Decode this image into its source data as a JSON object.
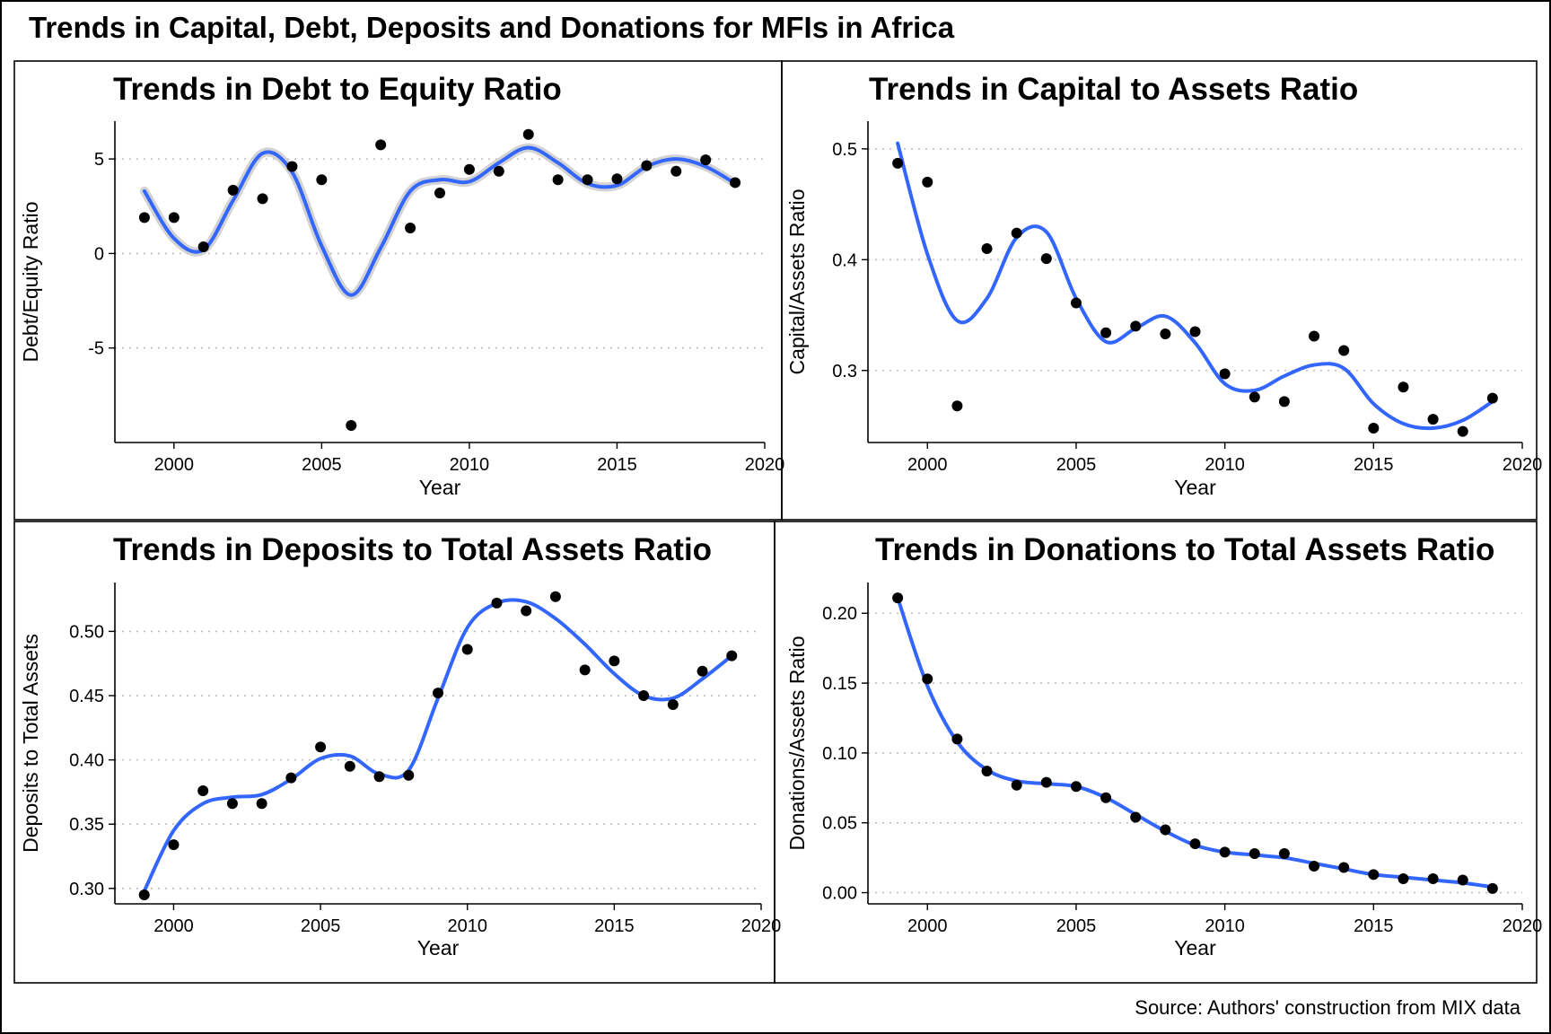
{
  "figure": {
    "title": "Trends in Capital, Debt, Deposits and Donations for MFIs in Africa",
    "source": "Source: Authors' construction from MIX data"
  },
  "chart_data": [
    {
      "type": "scatter",
      "title": "Trends in Debt to Equity Ratio",
      "xlabel": "Year",
      "ylabel": "Debt/Equity Ratio",
      "xlim": [
        1998,
        2020
      ],
      "ylim": [
        -10,
        7
      ],
      "xticks": [
        2000,
        2005,
        2010,
        2015,
        2020
      ],
      "xtick_labels": [
        "2000",
        "2005",
        "2010",
        "2015",
        "2020"
      ],
      "yticks": [
        -5,
        0,
        5
      ],
      "ytick_labels": [
        "-5",
        "0",
        "5"
      ],
      "grid": "horizontal dotted",
      "x": [
        1999,
        2000,
        2001,
        2002,
        2003,
        2004,
        2005,
        2006,
        2007,
        2008,
        2009,
        2010,
        2011,
        2012,
        2013,
        2014,
        2015,
        2016,
        2017,
        2018,
        2019
      ],
      "y": [
        1.9,
        1.9,
        0.35,
        3.35,
        2.9,
        4.6,
        3.9,
        -9.1,
        5.75,
        1.35,
        3.2,
        4.45,
        4.35,
        6.3,
        3.9,
        3.9,
        3.95,
        4.65,
        4.35,
        4.95,
        3.75
      ],
      "smooth": {
        "x": [
          1999,
          2000,
          2001,
          2002,
          2003,
          2004,
          2005,
          2006,
          2007,
          2008,
          2009,
          2010,
          2011,
          2012,
          2013,
          2014,
          2015,
          2016,
          2017,
          2018,
          2019
        ],
        "y": [
          3.3,
          0.8,
          0.2,
          2.8,
          5.3,
          4.3,
          0.4,
          -2.2,
          0.3,
          3.3,
          3.9,
          3.8,
          4.8,
          5.6,
          4.8,
          3.7,
          3.6,
          4.6,
          5.0,
          4.6,
          3.7
        ]
      },
      "colors": {
        "point": "#000000",
        "smooth": "#3366FF",
        "band": "#c8c8c8"
      }
    },
    {
      "type": "scatter",
      "title": "Trends in Capital to Assets Ratio",
      "xlabel": "Year",
      "ylabel": "Capital/Assets Ratio",
      "xlim": [
        1998,
        2020
      ],
      "ylim": [
        0.235,
        0.525
      ],
      "xticks": [
        2000,
        2005,
        2010,
        2015,
        2020
      ],
      "xtick_labels": [
        "2000",
        "2005",
        "2010",
        "2015",
        "2020"
      ],
      "yticks": [
        0.3,
        0.4,
        0.5
      ],
      "ytick_labels": [
        "0.3",
        "0.4",
        "0.5"
      ],
      "grid": "horizontal dotted",
      "x": [
        1999,
        2000,
        2001,
        2002,
        2003,
        2004,
        2005,
        2006,
        2007,
        2008,
        2009,
        2010,
        2011,
        2012,
        2013,
        2014,
        2015,
        2016,
        2017,
        2018,
        2019
      ],
      "y": [
        0.487,
        0.47,
        0.268,
        0.41,
        0.424,
        0.401,
        0.361,
        0.334,
        0.34,
        0.333,
        0.335,
        0.297,
        0.276,
        0.272,
        0.331,
        0.318,
        0.248,
        0.285,
        0.256,
        0.245,
        0.275
      ],
      "smooth": {
        "x": [
          1999,
          2000,
          2001,
          2002,
          2003,
          2004,
          2005,
          2006,
          2007,
          2008,
          2009,
          2010,
          2011,
          2012,
          2013,
          2014,
          2015,
          2016,
          2017,
          2018,
          2019
        ],
        "y": [
          0.505,
          0.405,
          0.345,
          0.365,
          0.42,
          0.425,
          0.365,
          0.326,
          0.338,
          0.349,
          0.325,
          0.288,
          0.282,
          0.295,
          0.305,
          0.302,
          0.27,
          0.252,
          0.248,
          0.255,
          0.272
        ]
      },
      "colors": {
        "point": "#000000",
        "smooth": "#3366FF"
      }
    },
    {
      "type": "scatter",
      "title": "Trends in Deposits to Total Assets Ratio",
      "xlabel": "Year",
      "ylabel": "Deposits to Total Assets",
      "xlim": [
        1998,
        2020
      ],
      "ylim": [
        0.288,
        0.538
      ],
      "xticks": [
        2000,
        2005,
        2010,
        2015,
        2020
      ],
      "xtick_labels": [
        "2000",
        "2005",
        "2010",
        "2015",
        "2020"
      ],
      "yticks": [
        0.3,
        0.35,
        0.4,
        0.45,
        0.5
      ],
      "ytick_labels": [
        "0.30",
        "0.35",
        "0.40",
        "0.45",
        "0.50"
      ],
      "grid": "horizontal dotted",
      "x": [
        1999,
        2000,
        2001,
        2002,
        2003,
        2004,
        2005,
        2006,
        2007,
        2008,
        2009,
        2010,
        2011,
        2012,
        2013,
        2014,
        2015,
        2016,
        2017,
        2018,
        2019
      ],
      "y": [
        0.295,
        0.334,
        0.376,
        0.366,
        0.366,
        0.386,
        0.41,
        0.395,
        0.387,
        0.388,
        0.452,
        0.486,
        0.522,
        0.516,
        0.527,
        0.47,
        0.477,
        0.45,
        0.443,
        0.469,
        0.481
      ],
      "smooth": {
        "x": [
          1999,
          2000,
          2001,
          2002,
          2003,
          2004,
          2005,
          2006,
          2007,
          2008,
          2009,
          2010,
          2011,
          2012,
          2013,
          2014,
          2015,
          2016,
          2017,
          2018,
          2019
        ],
        "y": [
          0.298,
          0.345,
          0.366,
          0.371,
          0.373,
          0.385,
          0.401,
          0.403,
          0.389,
          0.392,
          0.448,
          0.503,
          0.522,
          0.523,
          0.51,
          0.49,
          0.467,
          0.45,
          0.448,
          0.463,
          0.481
        ]
      },
      "colors": {
        "point": "#000000",
        "smooth": "#3366FF"
      }
    },
    {
      "type": "scatter",
      "title": "Trends in Donations to Total Assets Ratio",
      "xlabel": "Year",
      "ylabel": "Donations/Assets Ratio",
      "xlim": [
        1998,
        2020
      ],
      "ylim": [
        -0.008,
        0.222
      ],
      "xticks": [
        2000,
        2005,
        2010,
        2015,
        2020
      ],
      "xtick_labels": [
        "2000",
        "2005",
        "2010",
        "2015",
        "2020"
      ],
      "yticks": [
        0,
        0.05,
        0.1,
        0.15,
        0.2
      ],
      "ytick_labels": [
        "0.00",
        "0.05",
        "0.10",
        "0.15",
        "0.20"
      ],
      "grid": "horizontal dotted",
      "x": [
        1999,
        2000,
        2001,
        2002,
        2003,
        2004,
        2005,
        2006,
        2007,
        2008,
        2009,
        2010,
        2011,
        2012,
        2013,
        2014,
        2015,
        2016,
        2017,
        2018,
        2019
      ],
      "y": [
        0.211,
        0.153,
        0.11,
        0.087,
        0.077,
        0.079,
        0.076,
        0.068,
        0.054,
        0.045,
        0.035,
        0.029,
        0.028,
        0.028,
        0.019,
        0.018,
        0.013,
        0.01,
        0.01,
        0.009,
        0.003
      ],
      "smooth": {
        "x": [
          1999,
          2000,
          2001,
          2002,
          2003,
          2004,
          2005,
          2006,
          2007,
          2008,
          2009,
          2010,
          2011,
          2012,
          2013,
          2014,
          2015,
          2016,
          2017,
          2018,
          2019
        ],
        "y": [
          0.211,
          0.148,
          0.108,
          0.088,
          0.08,
          0.078,
          0.076,
          0.068,
          0.056,
          0.044,
          0.034,
          0.029,
          0.027,
          0.025,
          0.021,
          0.017,
          0.013,
          0.011,
          0.009,
          0.007,
          0.004
        ]
      },
      "colors": {
        "point": "#000000",
        "smooth": "#3366FF"
      }
    }
  ]
}
